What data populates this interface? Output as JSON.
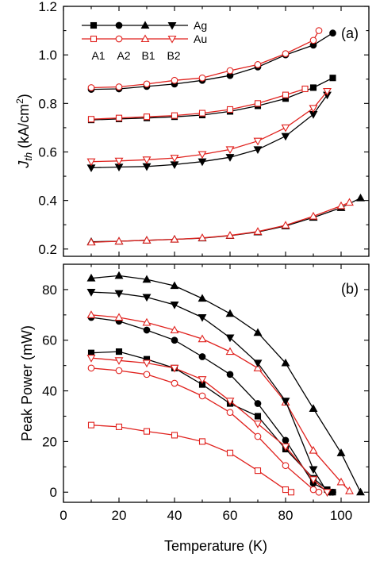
{
  "colors": {
    "ag": "#000000",
    "au": "#e0211d"
  },
  "legend": {
    "ag_label": "Ag",
    "au_label": "Au",
    "sample_labels": [
      "A1",
      "A2",
      "B1",
      "B2"
    ]
  },
  "chart_data": [
    {
      "type": "line",
      "panel_label": "(a)",
      "ylabel_main": "J",
      "ylabel_sub": "th",
      "ylabel_rest": " (kA/cm",
      "ylabel_sup": "2",
      "ylabel_end": ")",
      "xlim": [
        0,
        110
      ],
      "ylim": [
        0.17,
        1.2
      ],
      "yticks": [
        0.2,
        0.4,
        0.6,
        0.8,
        1.0,
        1.2
      ],
      "ytick_labels": [
        "0.2",
        "0.4",
        "0.6",
        "0.8",
        "1.0",
        "1.2"
      ],
      "series": [
        {
          "name": "A1",
          "metal": "Ag",
          "marker": "square",
          "x": [
            10,
            20,
            30,
            40,
            50,
            60,
            70,
            80,
            90,
            97
          ],
          "y": [
            0.732,
            0.736,
            0.74,
            0.745,
            0.752,
            0.767,
            0.79,
            0.82,
            0.865,
            0.905
          ]
        },
        {
          "name": "A1",
          "metal": "Au",
          "marker": "square",
          "x": [
            10,
            20,
            30,
            40,
            50,
            60,
            70,
            80,
            87
          ],
          "y": [
            0.735,
            0.74,
            0.745,
            0.75,
            0.76,
            0.775,
            0.8,
            0.835,
            0.86
          ]
        },
        {
          "name": "A2",
          "metal": "Ag",
          "marker": "circle",
          "x": [
            10,
            20,
            30,
            40,
            50,
            60,
            70,
            80,
            90,
            97
          ],
          "y": [
            0.858,
            0.86,
            0.87,
            0.88,
            0.895,
            0.915,
            0.95,
            1.0,
            1.04,
            1.09
          ]
        },
        {
          "name": "A2",
          "metal": "Au",
          "marker": "circle",
          "x": [
            10,
            20,
            30,
            40,
            50,
            60,
            70,
            80,
            90,
            92
          ],
          "y": [
            0.865,
            0.868,
            0.88,
            0.895,
            0.905,
            0.935,
            0.96,
            1.005,
            1.06,
            1.1
          ]
        },
        {
          "name": "B1",
          "metal": "Ag",
          "marker": "triangle-up",
          "x": [
            10,
            20,
            30,
            40,
            50,
            60,
            70,
            80,
            90,
            100,
            107
          ],
          "y": [
            0.23,
            0.232,
            0.236,
            0.24,
            0.245,
            0.255,
            0.27,
            0.295,
            0.33,
            0.37,
            0.41
          ]
        },
        {
          "name": "B1",
          "metal": "Au",
          "marker": "triangle-up",
          "x": [
            10,
            20,
            30,
            40,
            50,
            60,
            70,
            80,
            90,
            100,
            103
          ],
          "y": [
            0.228,
            0.232,
            0.236,
            0.24,
            0.246,
            0.256,
            0.272,
            0.298,
            0.335,
            0.378,
            0.392
          ]
        },
        {
          "name": "B2",
          "metal": "Ag",
          "marker": "triangle-down",
          "x": [
            10,
            20,
            30,
            40,
            50,
            60,
            70,
            80,
            90,
            95
          ],
          "y": [
            0.535,
            0.538,
            0.54,
            0.548,
            0.56,
            0.578,
            0.61,
            0.665,
            0.755,
            0.835
          ]
        },
        {
          "name": "B2",
          "metal": "Au",
          "marker": "triangle-down",
          "x": [
            10,
            20,
            30,
            40,
            50,
            60,
            70,
            80,
            90,
            95
          ],
          "y": [
            0.56,
            0.563,
            0.568,
            0.575,
            0.59,
            0.61,
            0.645,
            0.7,
            0.78,
            0.85
          ]
        }
      ]
    },
    {
      "type": "line",
      "panel_label": "(b)",
      "xlabel": "Temperature (K)",
      "ylabel": "Peak Power (mW)",
      "xlim": [
        0,
        110
      ],
      "ylim": [
        -4,
        90
      ],
      "xticks": [
        0,
        20,
        40,
        60,
        80,
        100
      ],
      "xtick_labels": [
        "0",
        "20",
        "40",
        "60",
        "80",
        "100"
      ],
      "yticks": [
        0,
        20,
        40,
        60,
        80
      ],
      "ytick_labels": [
        "0",
        "20",
        "40",
        "60",
        "80"
      ],
      "series": [
        {
          "name": "A1",
          "metal": "Ag",
          "marker": "square",
          "x": [
            10,
            20,
            30,
            40,
            50,
            60,
            70,
            80,
            90,
            95,
            97
          ],
          "y": [
            55,
            55.5,
            52.5,
            49,
            42.5,
            35,
            30,
            17,
            5.5,
            1,
            0
          ]
        },
        {
          "name": "A1",
          "metal": "Au",
          "marker": "square",
          "x": [
            10,
            20,
            30,
            40,
            50,
            60,
            70,
            80,
            82
          ],
          "y": [
            26.5,
            25.8,
            24,
            22.5,
            20,
            15.5,
            8.5,
            1,
            0
          ]
        },
        {
          "name": "A2",
          "metal": "Ag",
          "marker": "circle",
          "x": [
            10,
            20,
            30,
            40,
            50,
            60,
            70,
            80,
            90,
            96,
            97
          ],
          "y": [
            69,
            67.5,
            64,
            60,
            53.5,
            46.5,
            35,
            20.5,
            3.5,
            0,
            0
          ]
        },
        {
          "name": "A2",
          "metal": "Au",
          "marker": "circle",
          "x": [
            10,
            20,
            30,
            40,
            50,
            60,
            70,
            80,
            90,
            92
          ],
          "y": [
            49,
            48,
            46.5,
            43,
            38,
            31.5,
            22,
            10.5,
            1,
            0
          ]
        },
        {
          "name": "B1",
          "metal": "Ag",
          "marker": "triangle-up",
          "x": [
            10,
            20,
            30,
            40,
            50,
            60,
            70,
            80,
            90,
            100,
            107
          ],
          "y": [
            84.5,
            85.5,
            84,
            81.5,
            76.5,
            70.5,
            63,
            51,
            33,
            15.5,
            0
          ]
        },
        {
          "name": "B1",
          "metal": "Au",
          "marker": "triangle-up",
          "x": [
            10,
            20,
            30,
            40,
            50,
            60,
            70,
            80,
            90,
            100,
            103
          ],
          "y": [
            70,
            69,
            67,
            64,
            60.5,
            55.5,
            49,
            35.5,
            16.5,
            4,
            0.5
          ]
        },
        {
          "name": "B2",
          "metal": "Ag",
          "marker": "triangle-down",
          "x": [
            10,
            20,
            30,
            40,
            50,
            60,
            70,
            80,
            90,
            95
          ],
          "y": [
            79,
            78.5,
            77,
            74,
            69,
            61,
            51,
            36,
            9,
            0
          ]
        },
        {
          "name": "B2",
          "metal": "Au",
          "marker": "triangle-down",
          "x": [
            10,
            20,
            30,
            40,
            50,
            60,
            70,
            80,
            90,
            95
          ],
          "y": [
            53,
            52,
            51,
            49,
            44.5,
            36,
            27,
            18,
            5,
            0
          ]
        }
      ]
    }
  ]
}
